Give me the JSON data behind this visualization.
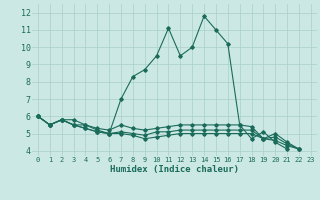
{
  "xlabel": "Humidex (Indice chaleur)",
  "xlim": [
    -0.5,
    23.5
  ],
  "ylim": [
    3.7,
    12.5
  ],
  "yticks": [
    4,
    5,
    6,
    7,
    8,
    9,
    10,
    11,
    12
  ],
  "xticks": [
    0,
    1,
    2,
    3,
    4,
    5,
    6,
    7,
    8,
    9,
    10,
    11,
    12,
    13,
    14,
    15,
    16,
    17,
    18,
    19,
    20,
    21,
    22,
    23
  ],
  "bg_color": "#cce8e4",
  "line_color": "#1a6b5a",
  "grid_color": "#aacfca",
  "lines": [
    [
      6.0,
      5.5,
      5.8,
      5.8,
      5.5,
      5.2,
      5.0,
      7.0,
      8.3,
      8.7,
      9.5,
      11.1,
      9.5,
      10.0,
      11.8,
      11.0,
      10.2,
      5.5,
      4.7,
      5.1,
      4.5,
      4.1,
      null,
      null
    ],
    [
      6.0,
      5.5,
      5.8,
      5.5,
      5.5,
      5.3,
      5.2,
      5.5,
      5.3,
      5.2,
      5.3,
      5.4,
      5.5,
      5.5,
      5.5,
      5.5,
      5.5,
      5.5,
      5.4,
      4.7,
      5.0,
      4.5,
      4.1,
      null
    ],
    [
      6.0,
      5.5,
      5.8,
      5.5,
      5.3,
      5.1,
      5.0,
      5.1,
      5.0,
      4.9,
      5.1,
      5.1,
      5.2,
      5.2,
      5.2,
      5.2,
      5.2,
      5.2,
      5.2,
      4.7,
      4.8,
      4.4,
      4.1,
      null
    ],
    [
      6.0,
      5.5,
      5.8,
      5.5,
      5.3,
      5.1,
      5.0,
      5.0,
      4.9,
      4.7,
      4.8,
      4.9,
      5.0,
      5.0,
      5.0,
      5.0,
      5.0,
      5.0,
      5.0,
      4.7,
      4.6,
      4.3,
      4.1,
      null
    ]
  ]
}
